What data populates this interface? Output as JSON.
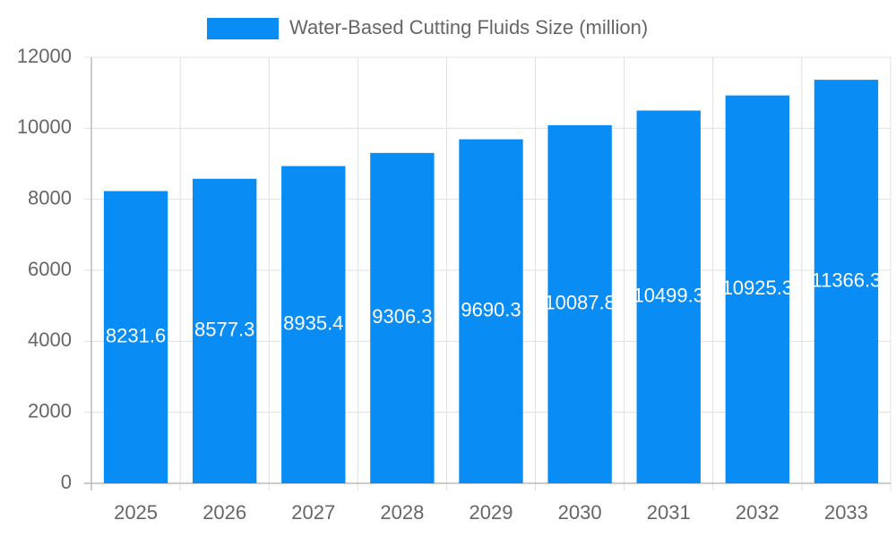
{
  "chart_data": {
    "type": "bar",
    "categories": [
      "2025",
      "2026",
      "2027",
      "2028",
      "2029",
      "2030",
      "2031",
      "2032",
      "2033"
    ],
    "series": [
      {
        "name": "Water-Based Cutting Fluids Size (million)",
        "color": "#0a8cf5",
        "values": [
          8231.6,
          8577.3,
          8935.4,
          9306.3,
          9690.3,
          10087.8,
          10499.3,
          10925.3,
          11366.3
        ]
      }
    ],
    "ylim": [
      0,
      12000
    ],
    "yticks": [
      0,
      2000,
      4000,
      6000,
      8000,
      10000,
      12000
    ],
    "grid": true,
    "legend": "top"
  }
}
